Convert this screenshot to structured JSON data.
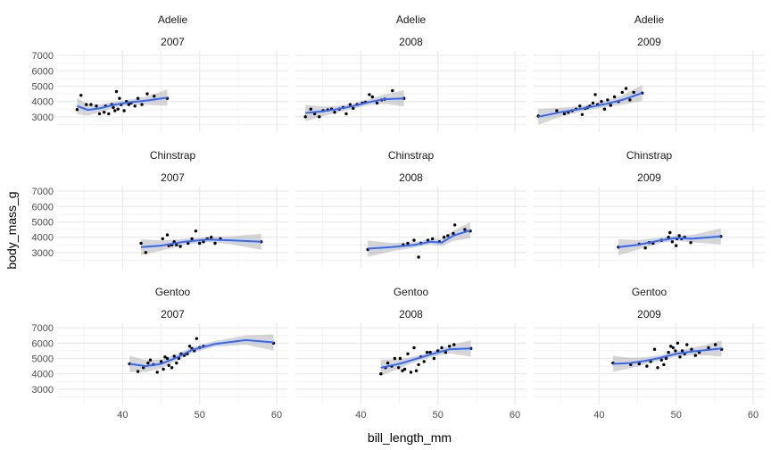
{
  "chart_data": {
    "type": "scatter",
    "xlabel": "bill_length_mm",
    "ylabel": "body_mass_g",
    "xlim": [
      31.5,
      61.5
    ],
    "ylim": [
      2000,
      7300
    ],
    "xticks": [
      40,
      50,
      60
    ],
    "yticks": [
      3000,
      4000,
      5000,
      6000,
      7000
    ],
    "grid": true,
    "colors": {
      "points": "#000000",
      "smooth": "#3366FF",
      "ribbon": "#999999",
      "grid": "#ebebeb"
    },
    "panels": [
      {
        "species": "Adelie",
        "year": "2007",
        "points": [
          [
            34.1,
            3475
          ],
          [
            34.6,
            4400
          ],
          [
            35.3,
            3800
          ],
          [
            35.9,
            3800
          ],
          [
            36.6,
            3700
          ],
          [
            37,
            3200
          ],
          [
            37.6,
            3300
          ],
          [
            37.8,
            3700
          ],
          [
            38.2,
            3200
          ],
          [
            38.6,
            3800
          ],
          [
            38.8,
            3600
          ],
          [
            39,
            3400
          ],
          [
            39.2,
            4650
          ],
          [
            39.4,
            3500
          ],
          [
            39.6,
            4200
          ],
          [
            39.8,
            3800
          ],
          [
            40.2,
            3400
          ],
          [
            40.5,
            4000
          ],
          [
            40.8,
            3800
          ],
          [
            41.1,
            3900
          ],
          [
            41.6,
            3700
          ],
          [
            42,
            4200
          ],
          [
            42.5,
            3800
          ],
          [
            43.2,
            4500
          ],
          [
            44.1,
            4350
          ],
          [
            45.8,
            4200
          ]
        ],
        "smooth": [
          [
            34.1,
            3700
          ],
          [
            35.5,
            3450
          ],
          [
            37,
            3550
          ],
          [
            39,
            3800
          ],
          [
            41,
            3950
          ],
          [
            43,
            4050
          ],
          [
            45.8,
            4250
          ]
        ]
      },
      {
        "species": "Adelie",
        "year": "2008",
        "points": [
          [
            32.8,
            3000
          ],
          [
            33.5,
            3500
          ],
          [
            34,
            3200
          ],
          [
            34.6,
            3000
          ],
          [
            35.1,
            3400
          ],
          [
            35.7,
            3450
          ],
          [
            36.2,
            3500
          ],
          [
            36.6,
            3300
          ],
          [
            37.2,
            3500
          ],
          [
            37.7,
            3600
          ],
          [
            38.1,
            3200
          ],
          [
            38.6,
            3800
          ],
          [
            39,
            3550
          ],
          [
            39.5,
            3800
          ],
          [
            40.2,
            3900
          ],
          [
            40.6,
            3950
          ],
          [
            41.1,
            4450
          ],
          [
            41.5,
            4300
          ],
          [
            42.1,
            3900
          ],
          [
            42.7,
            4100
          ],
          [
            43.1,
            4150
          ],
          [
            44.1,
            4700
          ],
          [
            45.6,
            4200
          ]
        ],
        "smooth": [
          [
            32.8,
            3250
          ],
          [
            35,
            3350
          ],
          [
            37,
            3500
          ],
          [
            39,
            3700
          ],
          [
            41,
            3950
          ],
          [
            43,
            4150
          ],
          [
            45.6,
            4200
          ]
        ]
      },
      {
        "species": "Adelie",
        "year": "2009",
        "points": [
          [
            32.1,
            3050
          ],
          [
            34.5,
            3400
          ],
          [
            35.5,
            3200
          ],
          [
            36,
            3300
          ],
          [
            36.5,
            3400
          ],
          [
            37,
            3500
          ],
          [
            37.5,
            3700
          ],
          [
            37.8,
            3150
          ],
          [
            38.2,
            3550
          ],
          [
            38.5,
            3600
          ],
          [
            38.8,
            3700
          ],
          [
            39.2,
            3900
          ],
          [
            39.5,
            4450
          ],
          [
            39.8,
            3800
          ],
          [
            40.3,
            4000
          ],
          [
            40.7,
            3500
          ],
          [
            41.1,
            4100
          ],
          [
            41.5,
            3750
          ],
          [
            42,
            4300
          ],
          [
            42.5,
            4000
          ],
          [
            43,
            4600
          ],
          [
            43.5,
            4850
          ],
          [
            44,
            4100
          ],
          [
            44.5,
            4600
          ],
          [
            45.6,
            4550
          ]
        ],
        "smooth": [
          [
            32.1,
            3000
          ],
          [
            35,
            3300
          ],
          [
            38,
            3550
          ],
          [
            41,
            3850
          ],
          [
            43,
            4100
          ],
          [
            45.6,
            4550
          ]
        ]
      },
      {
        "species": "Chinstrap",
        "year": "2007",
        "points": [
          [
            42.4,
            3600
          ],
          [
            43,
            3000
          ],
          [
            45.2,
            3900
          ],
          [
            45.8,
            4150
          ],
          [
            46,
            3450
          ],
          [
            46.4,
            3500
          ],
          [
            46.7,
            3700
          ],
          [
            47,
            3500
          ],
          [
            47.5,
            3400
          ],
          [
            48.5,
            3600
          ],
          [
            49,
            3900
          ],
          [
            49.5,
            4400
          ],
          [
            50,
            3600
          ],
          [
            50.5,
            3700
          ],
          [
            51,
            3900
          ],
          [
            51.5,
            4000
          ],
          [
            52,
            3600
          ],
          [
            52.7,
            3900
          ],
          [
            58,
            3700
          ]
        ],
        "smooth": [
          [
            42.4,
            3350
          ],
          [
            45,
            3450
          ],
          [
            48,
            3700
          ],
          [
            51,
            3850
          ],
          [
            54,
            3800
          ],
          [
            58,
            3700
          ]
        ]
      },
      {
        "species": "Chinstrap",
        "year": "2008",
        "points": [
          [
            40.9,
            3200
          ],
          [
            45.5,
            3500
          ],
          [
            46.1,
            3600
          ],
          [
            46.9,
            3800
          ],
          [
            47.5,
            2700
          ],
          [
            47.8,
            3600
          ],
          [
            48.7,
            3800
          ],
          [
            49.3,
            3900
          ],
          [
            50.2,
            3700
          ],
          [
            50.8,
            4000
          ],
          [
            51.3,
            4100
          ],
          [
            52,
            4250
          ],
          [
            52.2,
            4800
          ],
          [
            53.5,
            4500
          ],
          [
            54.2,
            4400
          ]
        ],
        "smooth": [
          [
            40.9,
            3250
          ],
          [
            44,
            3350
          ],
          [
            47,
            3500
          ],
          [
            49,
            3700
          ],
          [
            50.5,
            3650
          ],
          [
            52,
            4100
          ],
          [
            54.2,
            4450
          ]
        ]
      },
      {
        "species": "Chinstrap",
        "year": "2009",
        "points": [
          [
            42.5,
            3350
          ],
          [
            45.2,
            3550
          ],
          [
            46,
            3300
          ],
          [
            46.5,
            3650
          ],
          [
            47,
            3600
          ],
          [
            48.1,
            3800
          ],
          [
            49,
            4000
          ],
          [
            49.2,
            4300
          ],
          [
            49.5,
            3700
          ],
          [
            50,
            3450
          ],
          [
            50.1,
            3900
          ],
          [
            50.4,
            4100
          ],
          [
            50.7,
            3900
          ],
          [
            51.1,
            4000
          ],
          [
            51.9,
            3650
          ],
          [
            55.8,
            4050
          ]
        ],
        "smooth": [
          [
            42.5,
            3350
          ],
          [
            45,
            3500
          ],
          [
            48,
            3800
          ],
          [
            50,
            3950
          ],
          [
            52,
            3900
          ],
          [
            55.8,
            4050
          ]
        ]
      },
      {
        "species": "Gentoo",
        "year": "2007",
        "points": [
          [
            40.9,
            4650
          ],
          [
            42,
            4150
          ],
          [
            42.7,
            4400
          ],
          [
            43.3,
            4700
          ],
          [
            43.6,
            4900
          ],
          [
            44,
            4600
          ],
          [
            44.5,
            4100
          ],
          [
            45,
            4800
          ],
          [
            45.3,
            4300
          ],
          [
            45.5,
            5100
          ],
          [
            45.8,
            5000
          ],
          [
            46,
            4550
          ],
          [
            46.4,
            4400
          ],
          [
            46.7,
            5150
          ],
          [
            47,
            4700
          ],
          [
            47.3,
            5000
          ],
          [
            47.6,
            5300
          ],
          [
            48,
            5200
          ],
          [
            48.4,
            5300
          ],
          [
            48.7,
            5800
          ],
          [
            49,
            5650
          ],
          [
            49.3,
            5500
          ],
          [
            49.6,
            6300
          ],
          [
            50,
            5700
          ],
          [
            50.5,
            5800
          ],
          [
            59.6,
            6000
          ]
        ],
        "smooth": [
          [
            40.9,
            4650
          ],
          [
            43,
            4500
          ],
          [
            45,
            4650
          ],
          [
            47,
            5050
          ],
          [
            49,
            5550
          ],
          [
            52,
            5950
          ],
          [
            56,
            6200
          ],
          [
            59.6,
            6050
          ]
        ]
      },
      {
        "species": "Gentoo",
        "year": "2008",
        "points": [
          [
            42.6,
            4000
          ],
          [
            43.2,
            4400
          ],
          [
            43.5,
            4700
          ],
          [
            44,
            4500
          ],
          [
            44.4,
            5000
          ],
          [
            44.9,
            4400
          ],
          [
            45.1,
            5000
          ],
          [
            45.4,
            4200
          ],
          [
            45.7,
            4300
          ],
          [
            46.1,
            5300
          ],
          [
            46.5,
            4100
          ],
          [
            46.9,
            5700
          ],
          [
            47.2,
            4200
          ],
          [
            47.5,
            4600
          ],
          [
            47.8,
            5100
          ],
          [
            48.2,
            4800
          ],
          [
            48.6,
            5400
          ],
          [
            49,
            5400
          ],
          [
            49.5,
            5000
          ],
          [
            50,
            5500
          ],
          [
            50.5,
            5700
          ],
          [
            51,
            5400
          ],
          [
            51.5,
            5800
          ],
          [
            52.1,
            5900
          ],
          [
            54.3,
            5650
          ]
        ],
        "smooth": [
          [
            42.6,
            4400
          ],
          [
            45,
            4650
          ],
          [
            47,
            4950
          ],
          [
            49,
            5250
          ],
          [
            51.5,
            5600
          ],
          [
            54.3,
            5650
          ]
        ]
      },
      {
        "species": "Gentoo",
        "year": "2009",
        "points": [
          [
            41.8,
            4700
          ],
          [
            44.1,
            4600
          ],
          [
            45.2,
            4650
          ],
          [
            46.2,
            4500
          ],
          [
            46.7,
            4800
          ],
          [
            47.2,
            5600
          ],
          [
            47.6,
            4400
          ],
          [
            48.1,
            4900
          ],
          [
            48.4,
            4600
          ],
          [
            48.7,
            5000
          ],
          [
            49,
            5400
          ],
          [
            49.3,
            5800
          ],
          [
            49.6,
            5700
          ],
          [
            49.9,
            5500
          ],
          [
            50.2,
            6000
          ],
          [
            50.5,
            5100
          ],
          [
            50.8,
            5500
          ],
          [
            51.1,
            5300
          ],
          [
            51.4,
            5900
          ],
          [
            52,
            5600
          ],
          [
            52.5,
            5200
          ],
          [
            53,
            5400
          ],
          [
            54.2,
            5700
          ],
          [
            55.1,
            5900
          ],
          [
            55.9,
            5600
          ]
        ],
        "smooth": [
          [
            41.8,
            4650
          ],
          [
            44,
            4700
          ],
          [
            46,
            4850
          ],
          [
            48,
            5050
          ],
          [
            50,
            5300
          ],
          [
            52,
            5450
          ],
          [
            54,
            5550
          ],
          [
            55.9,
            5650
          ]
        ]
      }
    ]
  }
}
